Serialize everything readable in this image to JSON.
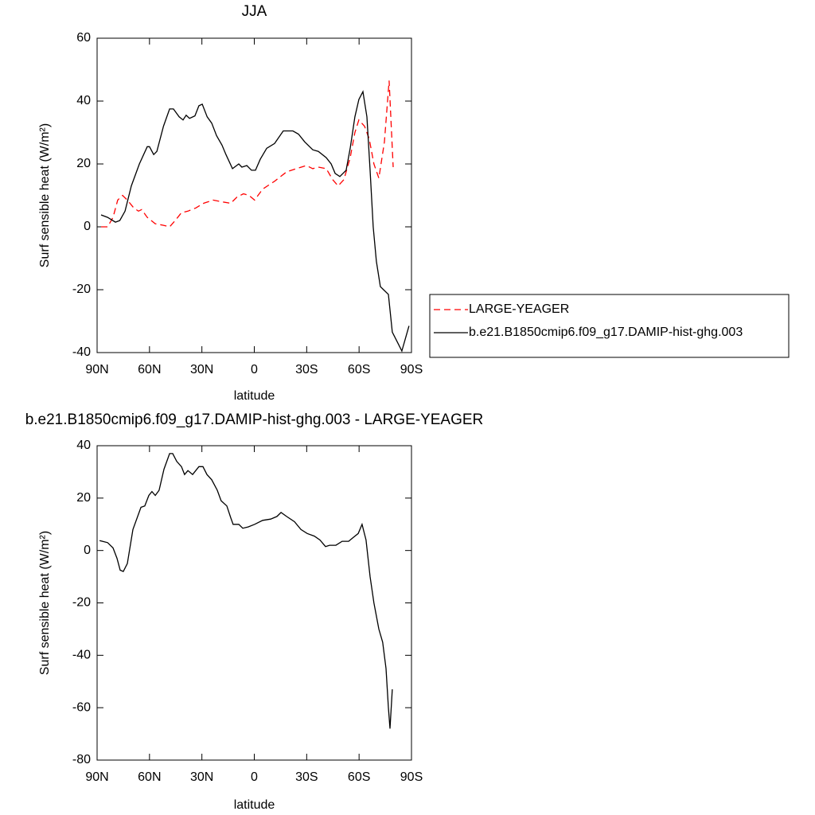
{
  "chart_data": [
    {
      "type": "line",
      "title": "JJA",
      "xlabel": "latitude",
      "ylabel": "Surf sensible heat (W/m²)",
      "xlim": [
        90,
        -90
      ],
      "ylim": [
        -40,
        60
      ],
      "xticks": [
        {
          "value": 90,
          "label": "90N"
        },
        {
          "value": 60,
          "label": "60N"
        },
        {
          "value": 30,
          "label": "30N"
        },
        0,
        {
          "value": -30,
          "label": "30S"
        },
        {
          "value": -60,
          "label": "60S"
        },
        {
          "value": -90,
          "label": "90S"
        }
      ],
      "yticks": [
        -40,
        -20,
        0,
        20,
        40,
        60
      ],
      "legend": "outside-right",
      "series": [
        {
          "name": "LARGE-YEAGER",
          "color": "#ff0000",
          "style": "dashed",
          "x": [
            87.7,
            84,
            80.9,
            78.2,
            75.4,
            72.7,
            69,
            66.3,
            64.5,
            61.3,
            56.7,
            52.2,
            48.5,
            45.3,
            41.7,
            38,
            33.5,
            29,
            23.5,
            19,
            13.5,
            9.9,
            6.2,
            3,
            -0.2,
            -4.8,
            -11.6,
            -18.5,
            -24,
            -29.8,
            -33.5,
            -36.7,
            -41.2,
            -44.9,
            -48,
            -51.3,
            -54.9,
            -57.6,
            -59.9,
            -63.1,
            -65.8,
            -68.5,
            -71.3,
            -74.5,
            -77.2,
            -79.5
          ],
          "values": [
            0,
            0,
            3,
            8.5,
            10,
            8.5,
            6,
            5,
            5.5,
            3,
            1,
            0.5,
            0,
            2,
            4.5,
            5,
            6,
            7.5,
            8.5,
            8,
            7.5,
            9.5,
            10.5,
            10,
            8.5,
            12,
            14.5,
            17.5,
            18.5,
            19.5,
            18.5,
            19,
            18.5,
            15,
            13,
            15,
            22,
            30,
            34,
            32,
            28,
            20,
            15.5,
            27,
            46.5,
            19
          ]
        },
        {
          "name": "b.e21.B1850cmip6.f09_g17.DAMIP-hist-ghg.003",
          "color": "#000000",
          "style": "solid",
          "x": [
            87.7,
            84,
            79.5,
            77,
            74,
            70.4,
            65.8,
            61.3,
            60,
            57.6,
            55.8,
            52,
            48.5,
            46.3,
            43,
            40.8,
            39,
            37.1,
            34,
            31.7,
            29.8,
            27,
            24.4,
            21.6,
            18.5,
            16.2,
            12.5,
            8.9,
            7.1,
            4.3,
            1.6,
            -0.7,
            -3.4,
            -7.1,
            -11.6,
            -16.6,
            -22.1,
            -25.3,
            -28.9,
            -33.5,
            -36.7,
            -41.2,
            -44,
            -46.3,
            -49,
            -52.6,
            -54.9,
            -57.6,
            -59.9,
            -62.2,
            -64.5,
            -66.3,
            -68.1,
            -69.9,
            -72.2,
            -74,
            -76.8,
            -79,
            -82.2,
            -84.5,
            -88.6
          ],
          "values": [
            3.8,
            3,
            1.5,
            2,
            5,
            13,
            20,
            25.5,
            25.5,
            23,
            24,
            32,
            37.5,
            37.5,
            35,
            34,
            35.5,
            34.5,
            35.3,
            38.5,
            39,
            35,
            33,
            29,
            26,
            23,
            18.5,
            20,
            19,
            19.5,
            18,
            18,
            21.5,
            25,
            26.5,
            30.5,
            30.5,
            29.5,
            27,
            24.5,
            24,
            22,
            20,
            17,
            16,
            18,
            25,
            35,
            40.5,
            43,
            35,
            18,
            0,
            -11,
            -19,
            -20,
            -21.5,
            -33.5,
            -37,
            -39.5,
            -31.5
          ]
        }
      ]
    },
    {
      "type": "line",
      "title": "b.e21.B1850cmip6.f09_g17.DAMIP-hist-ghg.003 - LARGE-YEAGER",
      "xlabel": "latitude",
      "ylabel": "Surf sensible heat (W/m²)",
      "xlim": [
        90,
        -90
      ],
      "ylim": [
        -80,
        40
      ],
      "xticks": [
        {
          "value": 90,
          "label": "90N"
        },
        {
          "value": 60,
          "label": "60N"
        },
        {
          "value": 30,
          "label": "30N"
        },
        0,
        {
          "value": -30,
          "label": "30S"
        },
        {
          "value": -60,
          "label": "60S"
        },
        {
          "value": -90,
          "label": "90S"
        }
      ],
      "yticks": [
        -80,
        -60,
        -40,
        -20,
        0,
        20,
        40
      ],
      "color": "#000000",
      "style": "solid",
      "x": [
        88.6,
        84,
        80.9,
        78.6,
        76.8,
        75,
        72.7,
        69.5,
        64.9,
        62.7,
        60.4,
        58.6,
        56.7,
        54.5,
        51.7,
        48.5,
        46.7,
        44.4,
        41.7,
        39.9,
        38,
        35.3,
        31.7,
        29.4,
        27.1,
        24.4,
        21.2,
        19,
        15.7,
        13.5,
        12.1,
        8.9,
        6.6,
        3.4,
        -0.2,
        -4.8,
        -9.4,
        -13,
        -15.3,
        -18.5,
        -23,
        -26.7,
        -30.3,
        -34.4,
        -37.6,
        -40.8,
        -43.1,
        -46.7,
        -50.3,
        -54,
        -56.7,
        -59.5,
        -61.7,
        -64,
        -66.3,
        -68.5,
        -71.3,
        -73.5,
        -75.4,
        -76.8,
        -77.7,
        -79
      ],
      "values": [
        3.8,
        3,
        1,
        -3,
        -7.5,
        -8,
        -5,
        8,
        16.5,
        17,
        21,
        22.5,
        21,
        23,
        31,
        37,
        37,
        34,
        32,
        29,
        30.5,
        29,
        32,
        32,
        29,
        27,
        23,
        19,
        17,
        12.5,
        10,
        10,
        8.5,
        9,
        10,
        11.5,
        12,
        13,
        14.5,
        13,
        11,
        8,
        6.5,
        5.5,
        4,
        1.5,
        2,
        2,
        3.5,
        3.5,
        5,
        6.5,
        10,
        4,
        -10,
        -20,
        -30,
        -35,
        -45,
        -60,
        -68,
        -53
      ]
    }
  ]
}
